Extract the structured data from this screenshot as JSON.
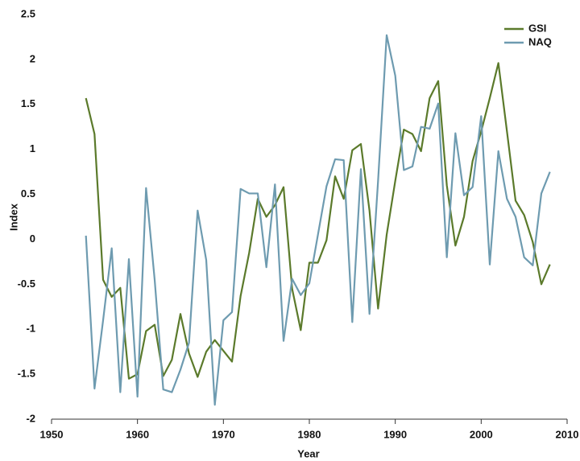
{
  "chart_data": {
    "type": "line",
    "x_label": "Year",
    "y_label": "Index",
    "x": [
      1954,
      1955,
      1956,
      1957,
      1958,
      1959,
      1960,
      1961,
      1962,
      1963,
      1964,
      1965,
      1966,
      1967,
      1968,
      1969,
      1970,
      1971,
      1972,
      1973,
      1974,
      1975,
      1976,
      1977,
      1978,
      1979,
      1980,
      1981,
      1982,
      1983,
      1984,
      1985,
      1986,
      1987,
      1988,
      1989,
      1990,
      1991,
      1992,
      1993,
      1994,
      1995,
      1996,
      1997,
      1998,
      1999,
      2000,
      2001,
      2002,
      2003,
      2004,
      2005,
      2006,
      2007,
      2008
    ],
    "series": [
      {
        "name": "GSI",
        "color": "#5b7a2b",
        "values": [
          1.57,
          1.17,
          -0.45,
          -0.64,
          -0.54,
          -1.55,
          -1.5,
          -1.02,
          -0.95,
          -1.52,
          -1.34,
          -0.83,
          -1.27,
          -1.53,
          -1.25,
          -1.12,
          -1.24,
          -1.36,
          -0.63,
          -0.15,
          0.45,
          0.25,
          0.38,
          0.58,
          -0.55,
          -1.01,
          -0.26,
          -0.26,
          -0.01,
          0.7,
          0.45,
          0.99,
          1.06,
          0.32,
          -0.77,
          0.05,
          0.65,
          1.22,
          1.17,
          0.98,
          1.57,
          1.76,
          0.6,
          -0.07,
          0.25,
          0.87,
          1.2,
          1.57,
          1.96,
          1.2,
          0.43,
          0.27,
          -0.03,
          -0.5,
          -0.28
        ]
      },
      {
        "name": "NAQ",
        "color": "#6e9bb0",
        "values": [
          0.04,
          -1.66,
          -0.9,
          -0.1,
          -1.7,
          -0.22,
          -1.75,
          0.57,
          -0.45,
          -1.67,
          -1.7,
          -1.45,
          -1.15,
          0.32,
          -0.23,
          -1.84,
          -0.9,
          -0.81,
          0.56,
          0.51,
          0.51,
          -0.31,
          0.61,
          -1.13,
          -0.44,
          -0.62,
          -0.49,
          0.05,
          0.59,
          0.89,
          0.88,
          -0.92,
          0.78,
          -0.83,
          0.65,
          2.27,
          1.82,
          0.77,
          0.81,
          1.25,
          1.23,
          1.51,
          -0.2,
          1.18,
          0.49,
          0.58,
          1.37,
          -0.28,
          0.98,
          0.45,
          0.25,
          -0.2,
          -0.29,
          0.51,
          0.75
        ]
      }
    ],
    "xlim": [
      1950,
      2010
    ],
    "xticks": [
      1950,
      1960,
      1970,
      1980,
      1990,
      2000,
      2010
    ],
    "ylim": [
      -2,
      2.5
    ],
    "yticks": [
      -2,
      -1.5,
      -1,
      -0.5,
      0,
      0.5,
      1,
      1.5,
      2,
      2.5
    ],
    "legend": "upper right"
  }
}
